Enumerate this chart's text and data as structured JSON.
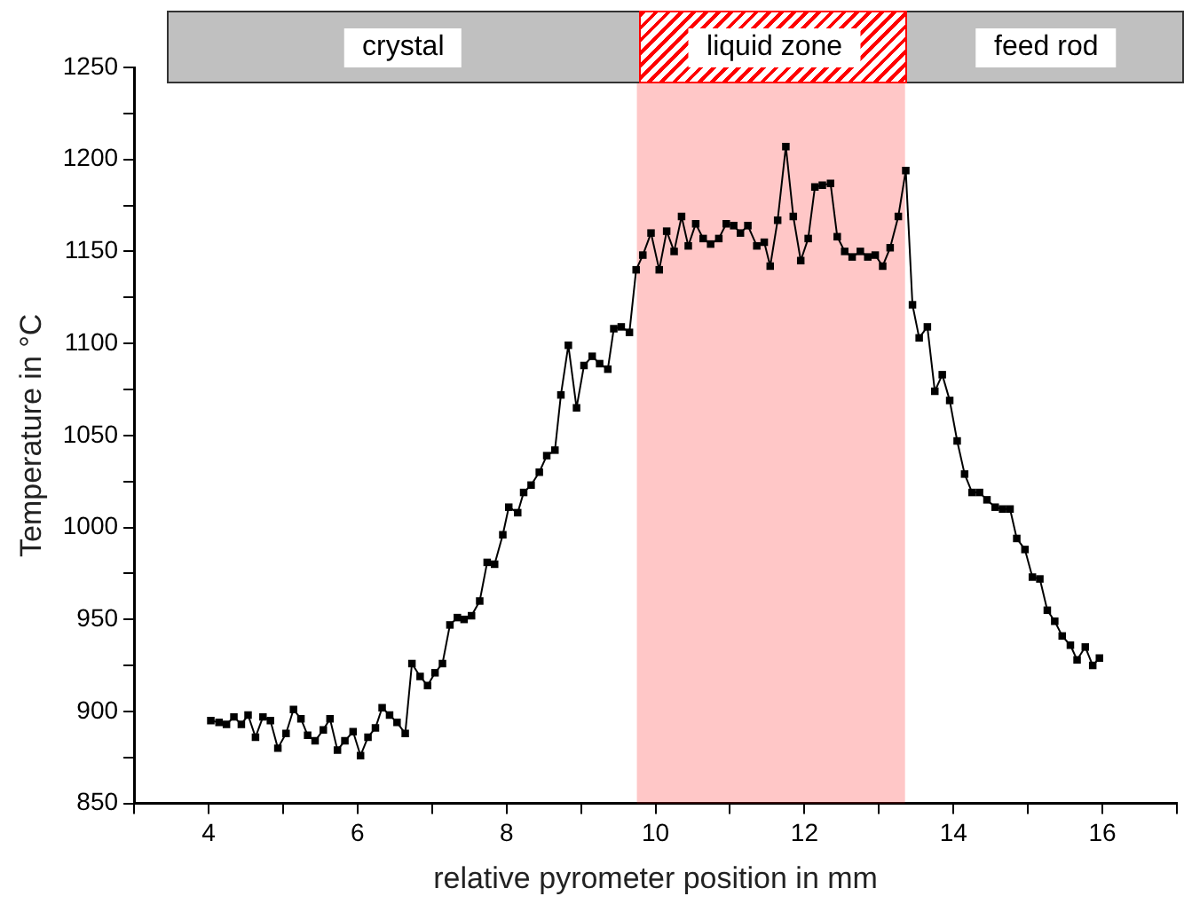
{
  "chart_data": {
    "type": "line",
    "xlabel": "relative pyrometer position in mm",
    "ylabel": "Temperature in °C",
    "annotations": [
      "crystal",
      "feed rod"
    ],
    "bands": [
      {
        "axis": "x",
        "from": 9.75,
        "to": 13.35,
        "label": "liquid zone",
        "color": "#ff0000"
      }
    ],
    "xlim": [
      3,
      17
    ],
    "xticks": [
      {
        "value": 3,
        "label": null
      },
      4,
      {
        "value": 5,
        "label": null
      },
      6,
      {
        "value": 7,
        "label": null
      },
      8,
      {
        "value": 9,
        "label": null
      },
      10,
      {
        "value": 11,
        "label": null
      },
      12,
      {
        "value": 13,
        "label": null
      },
      14,
      {
        "value": 15,
        "label": null
      },
      16,
      {
        "value": 17,
        "label": null
      }
    ],
    "ylim": [
      850,
      1250
    ],
    "yticks": [
      850,
      {
        "value": 875,
        "label": null
      },
      900,
      {
        "value": 925,
        "label": null
      },
      950,
      {
        "value": 975,
        "label": null
      },
      1000,
      {
        "value": 1025,
        "label": null
      },
      1050,
      {
        "value": 1075,
        "label": null
      },
      1100,
      {
        "value": 1125,
        "label": null
      },
      1150,
      {
        "value": 1175,
        "label": null
      },
      1200,
      {
        "value": 1225,
        "label": null
      },
      1250
    ],
    "grid": false,
    "legend": false,
    "marker": "square",
    "line_style": "solid",
    "series": [
      {
        "color": "#000000",
        "x": [
          4.03,
          4.14,
          4.24,
          4.34,
          4.44,
          4.53,
          4.63,
          4.73,
          4.83,
          4.93,
          5.04,
          5.14,
          5.24,
          5.33,
          5.43,
          5.54,
          5.63,
          5.73,
          5.83,
          5.94,
          6.04,
          6.14,
          6.24,
          6.33,
          6.43,
          6.53,
          6.64,
          6.73,
          6.84,
          6.94,
          7.04,
          7.14,
          7.24,
          7.34,
          7.43,
          7.53,
          7.64,
          7.74,
          7.84,
          7.95,
          8.03,
          8.15,
          8.23,
          8.33,
          8.44,
          8.54,
          8.65,
          8.73,
          8.83,
          8.94,
          9.04,
          9.15,
          9.25,
          9.36,
          9.44,
          9.54,
          9.65,
          9.74,
          9.83,
          9.94,
          10.05,
          10.15,
          10.25,
          10.35,
          10.44,
          10.54,
          10.64,
          10.74,
          10.85,
          10.95,
          11.05,
          11.14,
          11.24,
          11.36,
          11.46,
          11.54,
          11.64,
          11.75,
          11.85,
          11.95,
          12.05,
          12.14,
          12.24,
          12.35,
          12.44,
          12.54,
          12.64,
          12.75,
          12.85,
          12.95,
          13.05,
          13.15,
          13.26,
          13.36,
          13.45,
          13.54,
          13.65,
          13.75,
          13.85,
          13.95,
          14.05,
          14.15,
          14.25,
          14.35,
          14.45,
          14.56,
          14.66,
          14.76,
          14.85,
          14.96,
          15.06,
          15.16,
          15.26,
          15.36,
          15.46,
          15.57,
          15.66,
          15.77,
          15.87,
          15.96
        ],
        "values": [
          895,
          894,
          893,
          897,
          893,
          898,
          886,
          897,
          895,
          880,
          888,
          901,
          896,
          887,
          884,
          890,
          896,
          879,
          884,
          889,
          876,
          886,
          891,
          902,
          898,
          894,
          888,
          926,
          919,
          914,
          921,
          926,
          947,
          951,
          950,
          952,
          960,
          981,
          980,
          996,
          1011,
          1008,
          1019,
          1023,
          1030,
          1039,
          1042,
          1072,
          1099,
          1065,
          1088,
          1093,
          1089,
          1086,
          1108,
          1109,
          1106,
          1140,
          1148,
          1160,
          1140,
          1161,
          1150,
          1169,
          1153,
          1165,
          1157,
          1154,
          1157,
          1165,
          1164,
          1160,
          1164,
          1153,
          1155,
          1142,
          1167,
          1207,
          1169,
          1145,
          1157,
          1185,
          1186,
          1187,
          1158,
          1150,
          1147,
          1150,
          1147,
          1148,
          1142,
          1152,
          1169,
          1194,
          1121,
          1103,
          1109,
          1074,
          1083,
          1069,
          1047,
          1029,
          1019,
          1019,
          1015,
          1011,
          1010,
          1010,
          994,
          988,
          973,
          972,
          955,
          949,
          941,
          936,
          928,
          935,
          925,
          929
        ]
      }
    ]
  }
}
